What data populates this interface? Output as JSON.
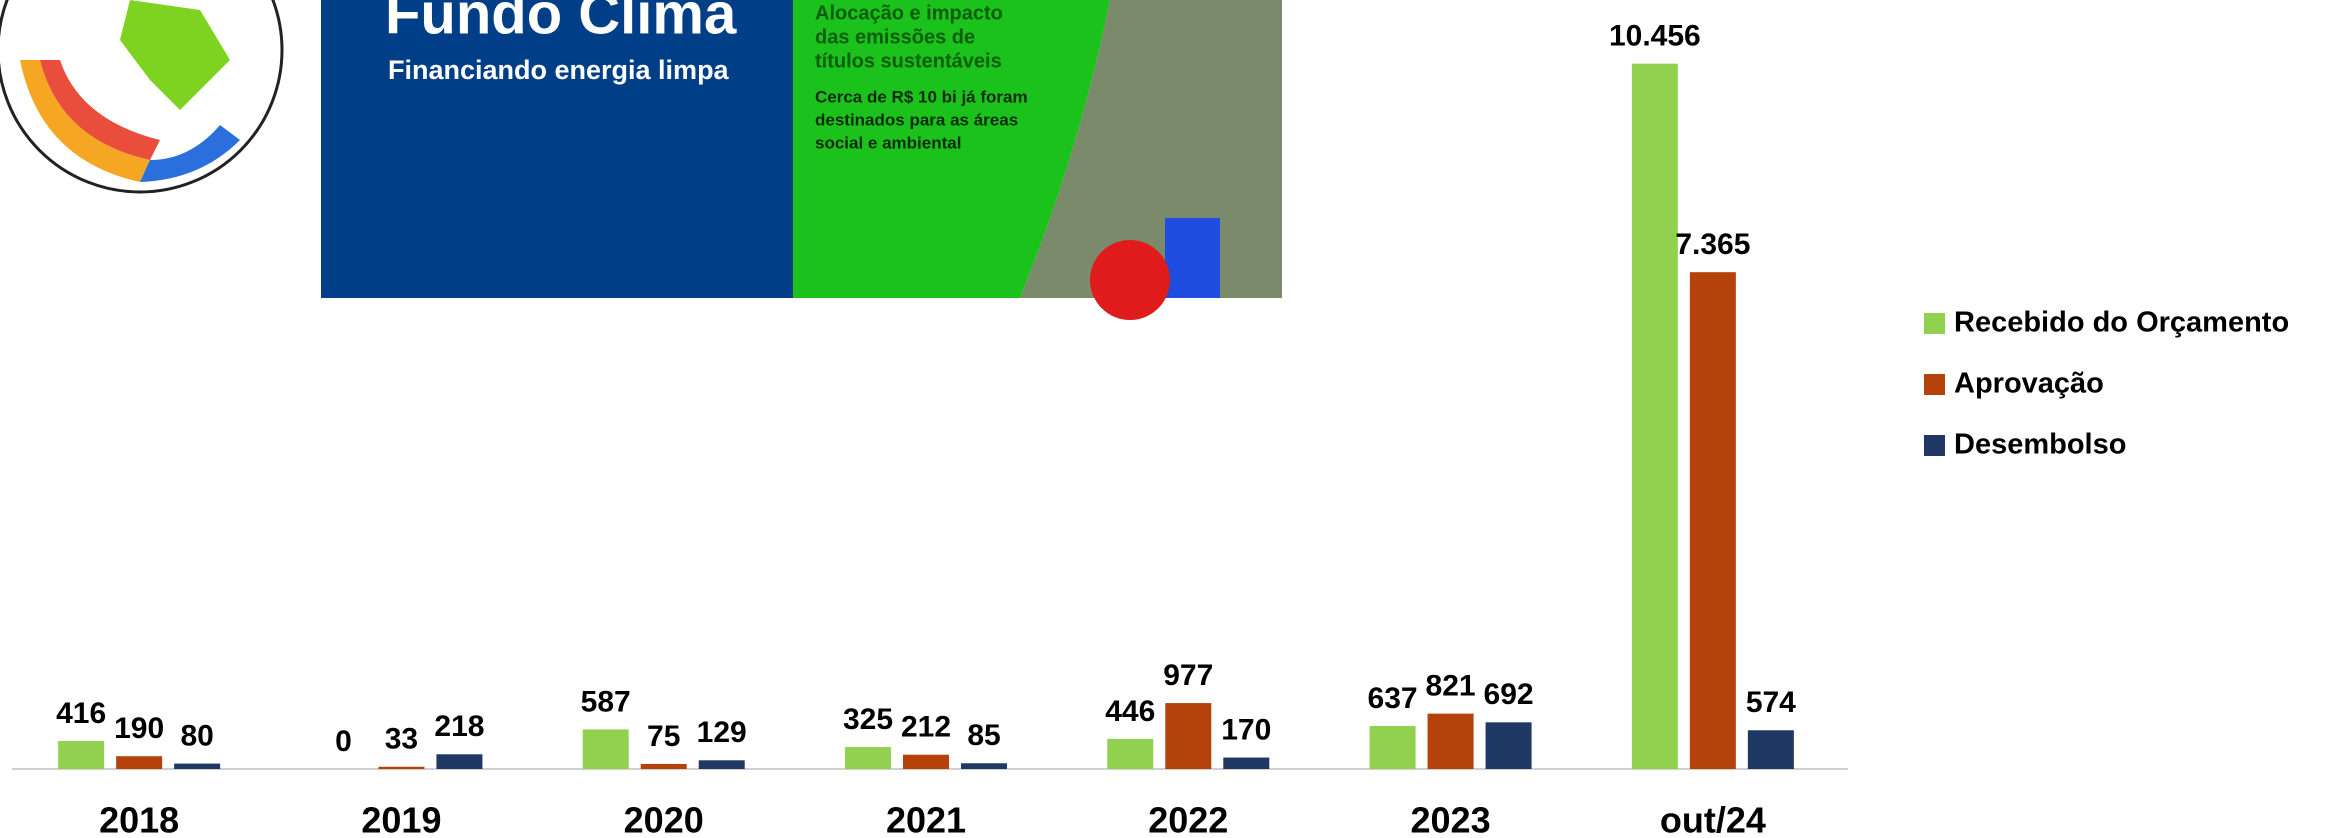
{
  "banner": {
    "title": "Fundo Clima",
    "subtitle": "Financiando energia limpa",
    "headline": [
      "Alocação e impacto",
      "das emissões de",
      "títulos sustentáveis"
    ],
    "note": [
      "Cerca de R$ 10 bi já foram",
      "destinados para as áreas",
      "social e ambiental"
    ]
  },
  "chart_data": {
    "type": "bar",
    "categories": [
      "2018",
      "2019",
      "2020",
      "2021",
      "2022",
      "2023",
      "out/24"
    ],
    "series": [
      {
        "name": "Recebido do Orçamento",
        "color": "#92d050",
        "values": [
          416,
          0,
          587,
          325,
          446,
          637,
          10456
        ],
        "value_labels": [
          "416",
          "0",
          "587",
          "325",
          "446",
          "637",
          "10.456"
        ]
      },
      {
        "name": "Aprovação",
        "color": "#b5410b",
        "values": [
          190,
          33,
          75,
          212,
          977,
          821,
          7365
        ],
        "value_labels": [
          "190",
          "33",
          "75",
          "212",
          "977",
          "821",
          "7.365"
        ]
      },
      {
        "name": "Desembolso",
        "color": "#1f3864",
        "values": [
          80,
          218,
          129,
          85,
          170,
          692,
          574
        ],
        "value_labels": [
          "80",
          "218",
          "129",
          "85",
          "170",
          "692",
          "574"
        ]
      }
    ],
    "ylim": [
      0,
      11400
    ],
    "legend": "right"
  }
}
